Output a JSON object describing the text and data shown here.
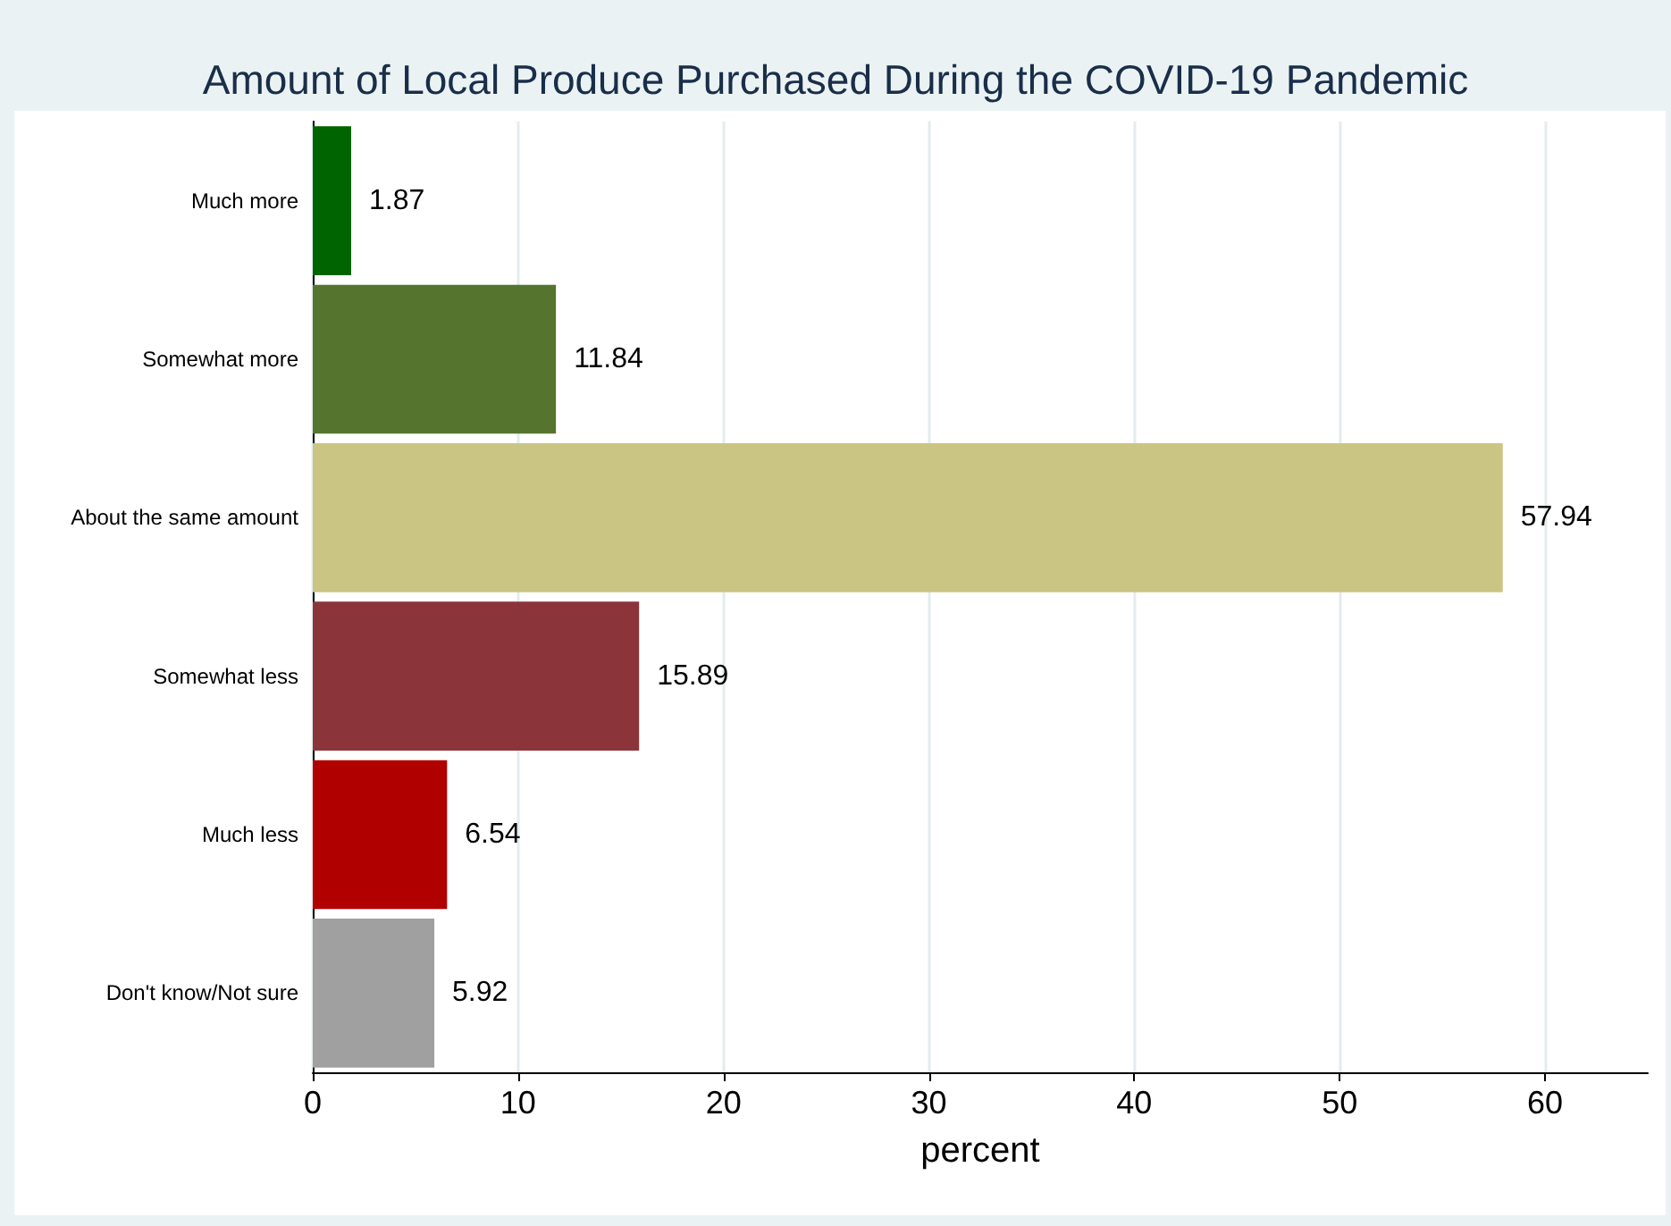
{
  "chart_data": {
    "type": "bar",
    "orientation": "horizontal",
    "title": "Amount of Local Produce Purchased During the COVID-19 Pandemic",
    "xlabel": "percent",
    "categories": [
      "Much more",
      "Somewhat more",
      "About the same amount",
      "Somewhat less",
      "Much less",
      "Don't know/Not sure"
    ],
    "values": [
      1.87,
      11.84,
      57.94,
      15.89,
      6.54,
      5.92
    ],
    "colors": [
      "#006400",
      "#55752f",
      "#cbc584",
      "#8b353b",
      "#b00000",
      "#a0a0a0"
    ],
    "xlim": [
      0,
      65
    ],
    "xticks": [
      0,
      10,
      20,
      30,
      40,
      50,
      60
    ],
    "grid": "x",
    "data_labels": true
  }
}
